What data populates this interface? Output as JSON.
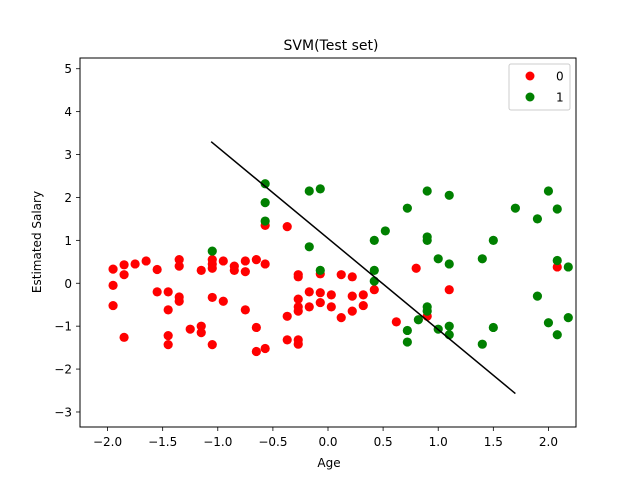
{
  "chart_data": {
    "type": "scatter",
    "title": "SVM(Test set)",
    "xlabel": "Age",
    "ylabel": "Estimated Salary",
    "xlim": [
      -2.25,
      2.25
    ],
    "ylim": [
      -3.35,
      5.25
    ],
    "xticks": [
      "−2.0",
      "−1.5",
      "−1.0",
      "−0.5",
      "0.0",
      "0.5",
      "1.0",
      "1.5",
      "2.0"
    ],
    "xtick_values": [
      -2.0,
      -1.5,
      -1.0,
      -0.5,
      0.0,
      0.5,
      1.0,
      1.5,
      2.0
    ],
    "yticks": [
      "−3",
      "−2",
      "−1",
      "0",
      "1",
      "2",
      "3",
      "4",
      "5"
    ],
    "ytick_values": [
      -3,
      -2,
      -1,
      0,
      1,
      2,
      3,
      4,
      5
    ],
    "grid": false,
    "legend_position": "top-right",
    "series": [
      {
        "name": "0",
        "color": "#ff0000",
        "points": [
          [
            -1.95,
            0.33
          ],
          [
            -1.95,
            -0.05
          ],
          [
            -1.95,
            -0.52
          ],
          [
            -1.85,
            0.43
          ],
          [
            -1.85,
            0.2
          ],
          [
            -1.85,
            -1.26
          ],
          [
            -1.75,
            0.45
          ],
          [
            -1.65,
            0.52
          ],
          [
            -1.55,
            0.32
          ],
          [
            -1.55,
            -0.2
          ],
          [
            -1.45,
            -0.2
          ],
          [
            -1.45,
            -0.62
          ],
          [
            -1.45,
            -1.22
          ],
          [
            -1.45,
            -1.43
          ],
          [
            -1.35,
            0.55
          ],
          [
            -1.35,
            0.4
          ],
          [
            -1.35,
            -0.32
          ],
          [
            -1.35,
            -0.42
          ],
          [
            -1.25,
            -1.07
          ],
          [
            -1.15,
            0.3
          ],
          [
            -1.15,
            -1.0
          ],
          [
            -1.15,
            -1.15
          ],
          [
            -1.05,
            0.55
          ],
          [
            -1.05,
            0.45
          ],
          [
            -1.05,
            0.35
          ],
          [
            -1.05,
            -0.33
          ],
          [
            -1.05,
            -1.43
          ],
          [
            -0.95,
            0.52
          ],
          [
            -0.95,
            -0.42
          ],
          [
            -0.85,
            0.4
          ],
          [
            -0.85,
            0.3
          ],
          [
            -0.75,
            0.52
          ],
          [
            -0.75,
            0.27
          ],
          [
            -0.75,
            -0.62
          ],
          [
            -0.65,
            0.55
          ],
          [
            -0.65,
            -1.03
          ],
          [
            -0.65,
            -1.59
          ],
          [
            -0.57,
            1.35
          ],
          [
            -0.57,
            0.45
          ],
          [
            -0.57,
            -1.52
          ],
          [
            -0.37,
            1.32
          ],
          [
            -0.37,
            -0.77
          ],
          [
            -0.37,
            -1.32
          ],
          [
            -0.27,
            0.2
          ],
          [
            -0.27,
            0.15
          ],
          [
            -0.27,
            -0.37
          ],
          [
            -0.27,
            -0.55
          ],
          [
            -0.27,
            -0.65
          ],
          [
            -0.27,
            -1.32
          ],
          [
            -0.27,
            -1.42
          ],
          [
            -0.17,
            -0.2
          ],
          [
            -0.17,
            -0.55
          ],
          [
            -0.07,
            0.22
          ],
          [
            -0.07,
            -0.22
          ],
          [
            -0.07,
            -0.45
          ],
          [
            0.03,
            -0.27
          ],
          [
            0.03,
            -0.55
          ],
          [
            0.12,
            0.2
          ],
          [
            0.12,
            -0.8
          ],
          [
            0.22,
            0.15
          ],
          [
            0.22,
            -0.3
          ],
          [
            0.22,
            -0.65
          ],
          [
            0.32,
            -0.27
          ],
          [
            0.32,
            -0.52
          ],
          [
            0.42,
            -0.15
          ],
          [
            0.62,
            -0.9
          ],
          [
            0.8,
            0.35
          ],
          [
            0.9,
            -0.77
          ],
          [
            1.1,
            -0.15
          ],
          [
            2.08,
            0.38
          ]
        ]
      },
      {
        "name": "1",
        "color": "#008000",
        "points": [
          [
            -1.05,
            0.75
          ],
          [
            -0.57,
            2.32
          ],
          [
            -0.57,
            1.88
          ],
          [
            -0.57,
            1.45
          ],
          [
            -0.17,
            2.15
          ],
          [
            -0.17,
            0.85
          ],
          [
            -0.07,
            2.2
          ],
          [
            -0.07,
            0.3
          ],
          [
            0.42,
            1.0
          ],
          [
            0.42,
            0.3
          ],
          [
            0.42,
            0.05
          ],
          [
            0.52,
            1.22
          ],
          [
            0.72,
            1.75
          ],
          [
            0.72,
            -1.1
          ],
          [
            0.72,
            -1.37
          ],
          [
            0.82,
            -0.85
          ],
          [
            0.9,
            2.15
          ],
          [
            0.9,
            1.08
          ],
          [
            0.9,
            1.0
          ],
          [
            0.9,
            -0.55
          ],
          [
            0.9,
            -0.65
          ],
          [
            1.0,
            0.57
          ],
          [
            1.0,
            -1.07
          ],
          [
            1.1,
            2.05
          ],
          [
            1.1,
            0.45
          ],
          [
            1.1,
            -1.0
          ],
          [
            1.1,
            -1.2
          ],
          [
            1.4,
            0.57
          ],
          [
            1.4,
            -1.42
          ],
          [
            1.5,
            1.0
          ],
          [
            1.5,
            -1.03
          ],
          [
            1.7,
            1.75
          ],
          [
            1.9,
            1.5
          ],
          [
            1.9,
            -0.3
          ],
          [
            2.0,
            2.15
          ],
          [
            2.0,
            -0.92
          ],
          [
            2.08,
            1.73
          ],
          [
            2.08,
            0.53
          ],
          [
            2.08,
            -1.2
          ],
          [
            2.18,
            0.38
          ],
          [
            2.18,
            -0.8
          ]
        ]
      }
    ],
    "decision_boundary": {
      "color": "#000000",
      "points": [
        [
          -1.06,
          3.3
        ],
        [
          1.7,
          -2.57
        ]
      ]
    }
  }
}
